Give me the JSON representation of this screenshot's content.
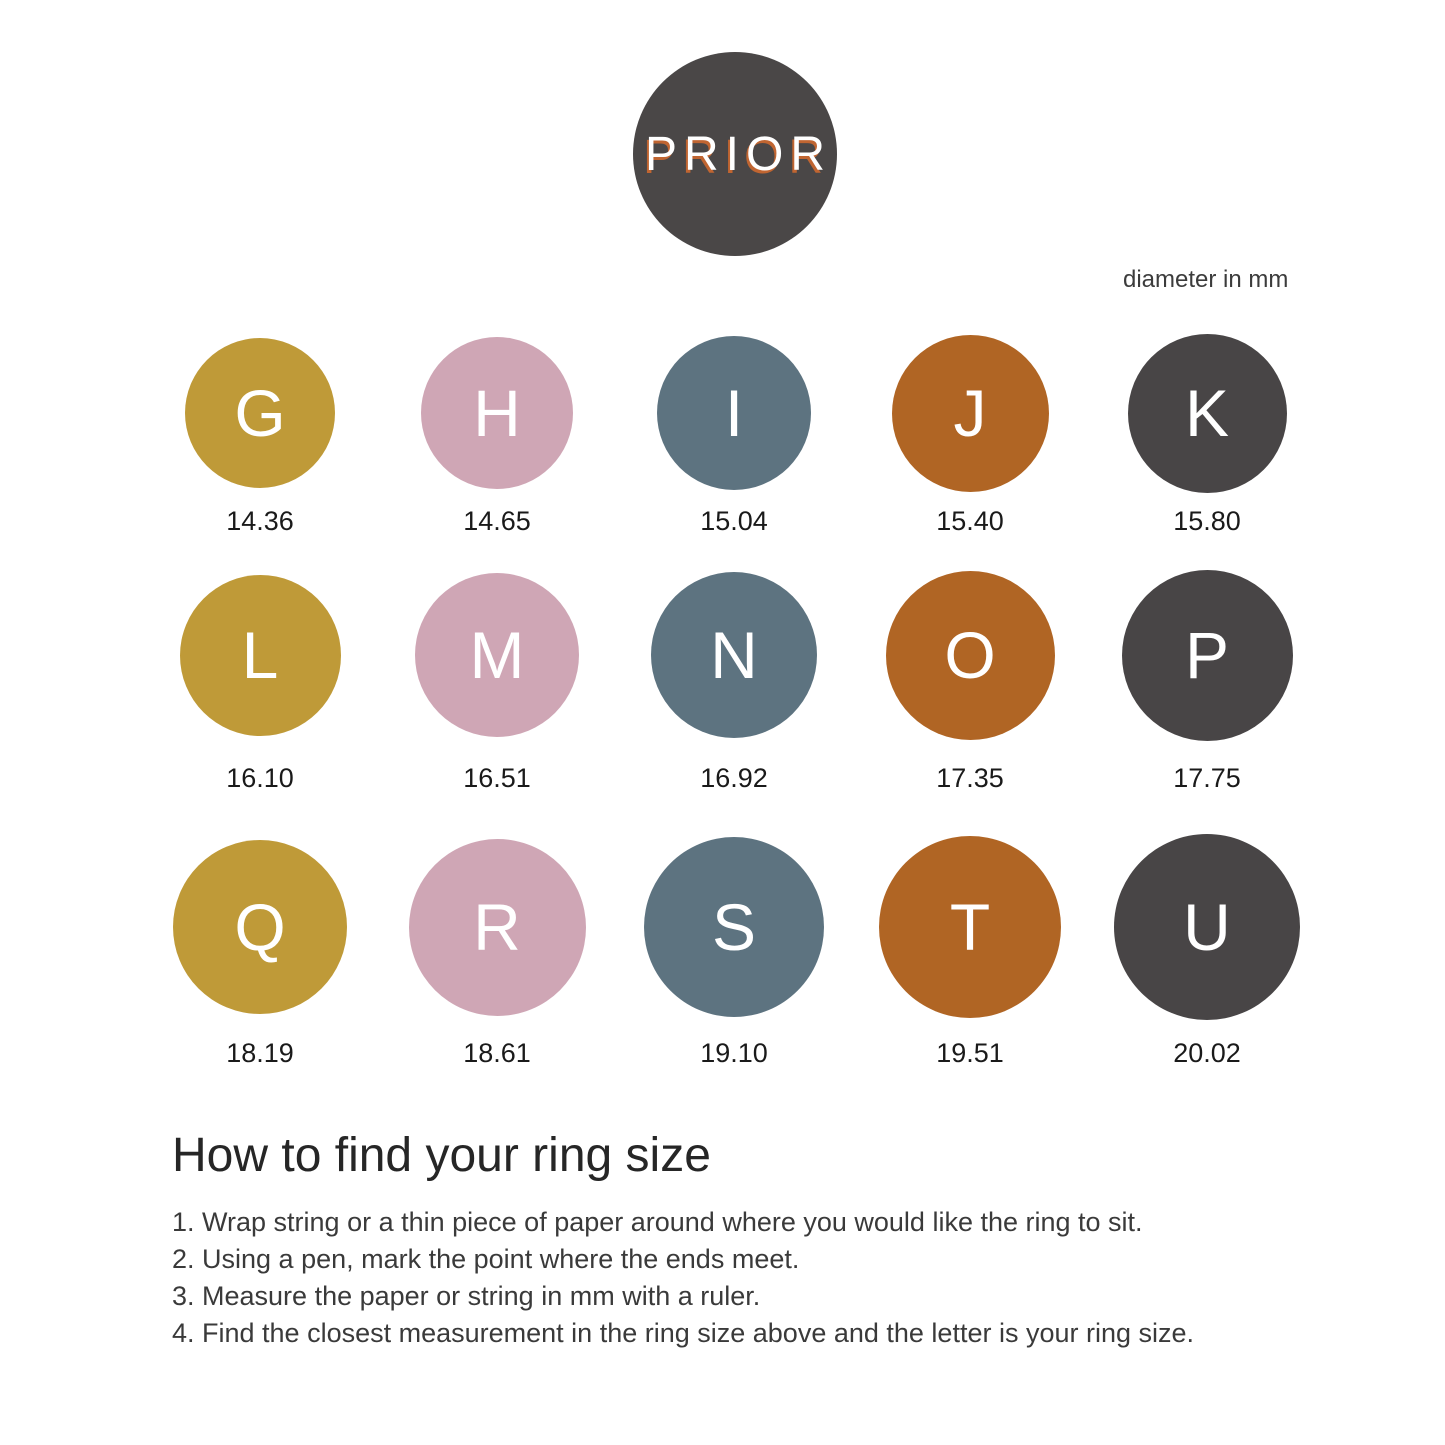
{
  "logo": {
    "text": "PRIOR",
    "circle_color": "#4a4747",
    "text_color": "#ffffff",
    "shadow_color": "#c06531"
  },
  "units_label": "diameter in mm",
  "palette": {
    "gold": "#bf9a38",
    "pink": "#cfa6b5",
    "blue": "#5d7380",
    "orange": "#b06524",
    "charcoal": "#484546"
  },
  "sizes": [
    {
      "letter": "G",
      "diameter_mm": "14.36",
      "color": "gold"
    },
    {
      "letter": "H",
      "diameter_mm": "14.65",
      "color": "pink"
    },
    {
      "letter": "I",
      "diameter_mm": "15.04",
      "color": "blue"
    },
    {
      "letter": "J",
      "diameter_mm": "15.40",
      "color": "orange"
    },
    {
      "letter": "K",
      "diameter_mm": "15.80",
      "color": "charcoal"
    },
    {
      "letter": "L",
      "diameter_mm": "16.10",
      "color": "gold"
    },
    {
      "letter": "M",
      "diameter_mm": "16.51",
      "color": "pink"
    },
    {
      "letter": "N",
      "diameter_mm": "16.92",
      "color": "blue"
    },
    {
      "letter": "O",
      "diameter_mm": "17.35",
      "color": "orange"
    },
    {
      "letter": "P",
      "diameter_mm": "17.75",
      "color": "charcoal"
    },
    {
      "letter": "Q",
      "diameter_mm": "18.19",
      "color": "gold"
    },
    {
      "letter": "R",
      "diameter_mm": "18.61",
      "color": "pink"
    },
    {
      "letter": "S",
      "diameter_mm": "19.10",
      "color": "blue"
    },
    {
      "letter": "T",
      "diameter_mm": "19.51",
      "color": "orange"
    },
    {
      "letter": "U",
      "diameter_mm": "20.02",
      "color": "charcoal"
    }
  ],
  "instructions": {
    "heading": "How to find your ring size",
    "steps": [
      "1. Wrap string or a thin piece of paper around where you would like the ring to sit.",
      "2. Using a pen, mark the point where the ends meet.",
      "3. Measure the paper or string in mm with a ruler.",
      "4. Find the closest measurement in the ring size above and the letter is your ring size."
    ]
  }
}
